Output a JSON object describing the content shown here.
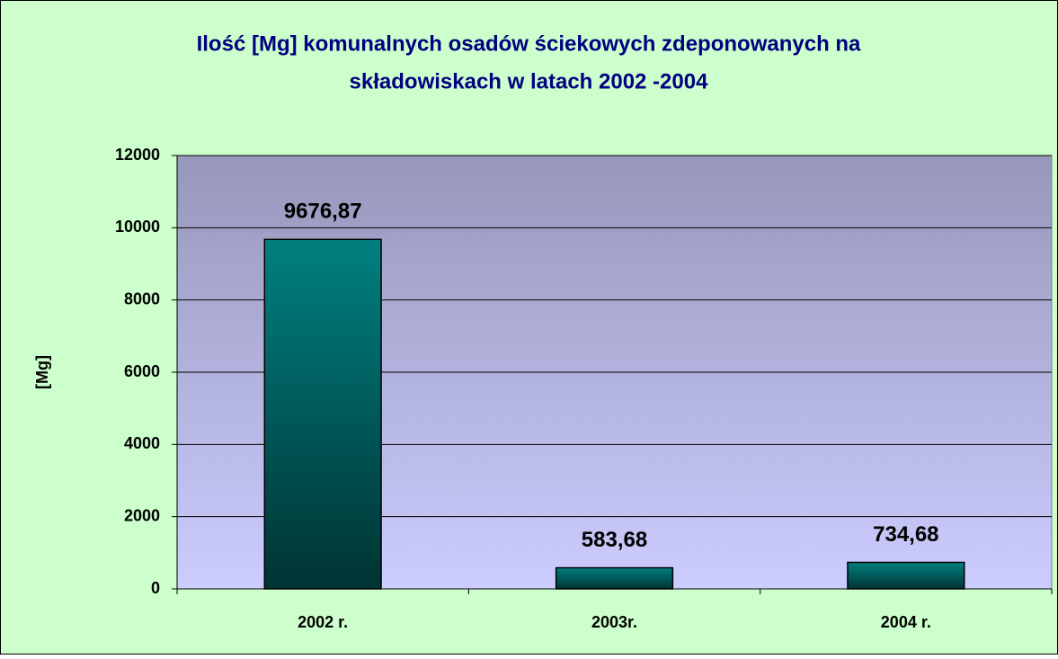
{
  "chart_data": {
    "type": "bar",
    "title": [
      "Ilość [Mg] komunalnych osadów ściekowych zdeponowanych na",
      "składowiskach w latach 2002 -2004"
    ],
    "y_label": "[Mg]",
    "categories": [
      "2002 r.",
      "2003r.",
      "2004 r."
    ],
    "values": [
      9676.87,
      583.68,
      734.68
    ],
    "value_labels": [
      "9676,87",
      "583,68",
      "734,68"
    ],
    "color": "#008080",
    "ylim": [
      0,
      12000
    ],
    "yticks": [
      0,
      2000,
      4000,
      6000,
      8000,
      10000,
      12000
    ],
    "grid": true
  }
}
